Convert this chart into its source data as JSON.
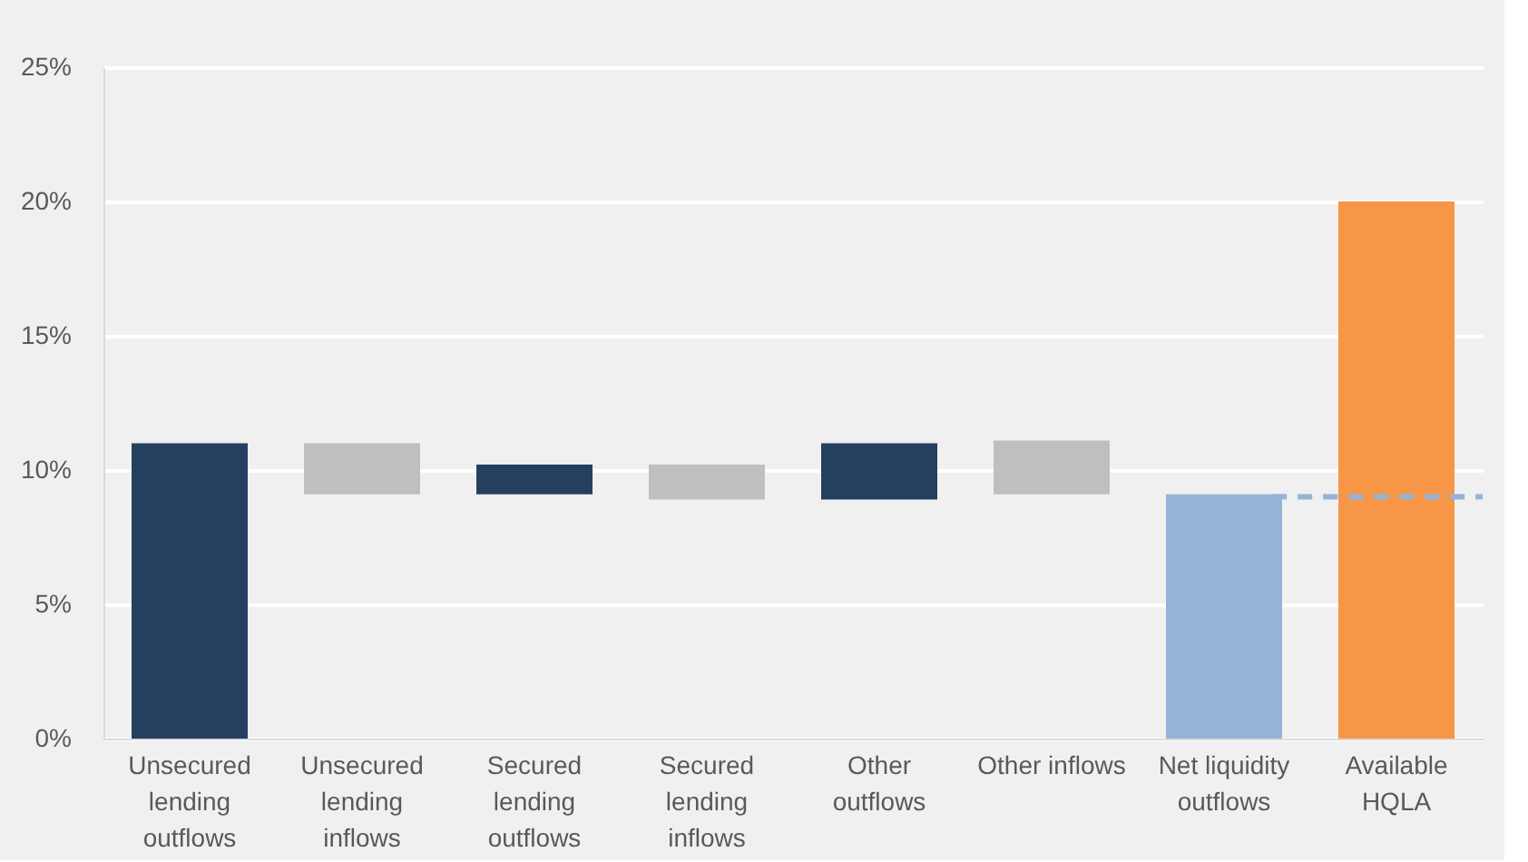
{
  "chart_data": {
    "type": "bar",
    "categories": [
      "Unsecured lending outflows",
      "Unsecured lending inflows",
      "Secured lending outflows",
      "Secured lending inflows",
      "Other outflows",
      "Other inflows",
      "Net liquidity outflows",
      "Available HQLA"
    ],
    "values": [
      11.0,
      1.9,
      1.1,
      1.3,
      2.1,
      2.0,
      9.1,
      20.0
    ],
    "base": [
      0,
      9.1,
      9.1,
      8.9,
      8.9,
      9.1,
      0,
      0
    ],
    "colors": [
      "#243f60",
      "#bfbfbf",
      "#243f60",
      "#bfbfbf",
      "#243f60",
      "#bfbfbf",
      "#95b3d7",
      "#f79646"
    ],
    "ylim": [
      0,
      25
    ],
    "yticks": [
      {
        "value": 0,
        "label": "0%"
      },
      {
        "value": 5,
        "label": "5%"
      },
      {
        "value": 10,
        "label": "10%"
      },
      {
        "value": 15,
        "label": "15%"
      },
      {
        "value": 20,
        "label": "20%"
      },
      {
        "value": 25,
        "label": "25%"
      }
    ],
    "grid": "y",
    "ref_lines": [
      {
        "axis": "y",
        "value": 9.0,
        "color": "#95b3d7",
        "line_style": "dashed"
      }
    ]
  }
}
